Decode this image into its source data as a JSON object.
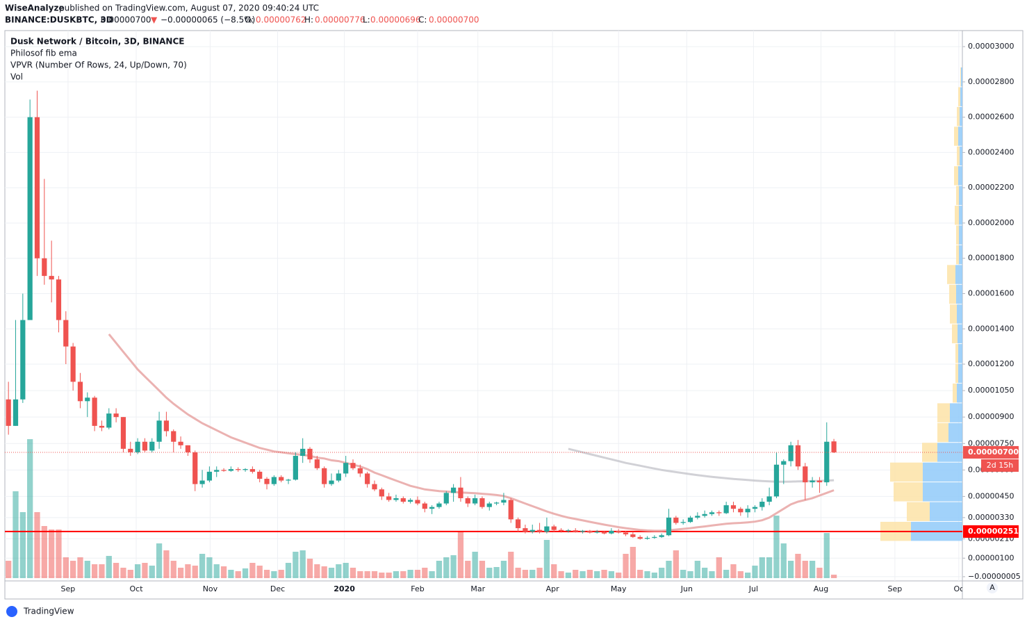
{
  "header": {
    "publisher": "WiseAnalyze",
    "published": "published on TradingView.com, August 07, 2020 09:40:24 UTC",
    "symbol": "BINANCE:DUSKBTC, 3D",
    "last": "0.00000700",
    "arrow": "▼",
    "change": "−0.00000065 (−8.5%)",
    "o_label": "O:",
    "o": "0.00000762",
    "h_label": "H:",
    "h": "0.00000776",
    "l_label": "L:",
    "l": "0.00000696",
    "c_label": "C:",
    "c": "0.00000700"
  },
  "footer": {
    "brand": "TradingView",
    "scale_button": "A"
  },
  "chart_data": {
    "type": "candlestick",
    "legend": [
      "Dusk Network / Bitcoin, 3D, BINANCE",
      "Philosof fib ema",
      "VPVR (Number Of Rows, 24, Up/Down, 70)",
      "Vol"
    ],
    "up_color": "#26a69a",
    "down_color": "#ef5350",
    "grid": true,
    "xlim": [
      -0.5,
      132.9
    ],
    "xticks": [
      {
        "value": 8.3,
        "label": "Sep"
      },
      {
        "value": 17.8,
        "label": "Oct"
      },
      {
        "value": 28.1,
        "label": "Nov"
      },
      {
        "value": 37.5,
        "label": "Dec"
      },
      {
        "value": 46.8,
        "label": "2020"
      },
      {
        "value": 57.0,
        "label": "Feb"
      },
      {
        "value": 65.4,
        "label": "Mar"
      },
      {
        "value": 75.8,
        "label": "Apr"
      },
      {
        "value": 85.0,
        "label": "May"
      },
      {
        "value": 94.5,
        "label": "Jun"
      },
      {
        "value": 103.8,
        "label": "Jul"
      },
      {
        "value": 113.2,
        "label": "Aug"
      },
      {
        "value": 123.5,
        "label": "Sep"
      },
      {
        "value": 132.4,
        "label": "Oc"
      }
    ],
    "ylim": [
      -2.9e-07,
      3.091e-05
    ],
    "yticks": [
      {
        "value": 3e-05,
        "label": "0.00003000"
      },
      {
        "value": 2.8e-05,
        "label": "0.00002800"
      },
      {
        "value": 2.6e-05,
        "label": "0.00002600"
      },
      {
        "value": 2.4e-05,
        "label": "0.00002400"
      },
      {
        "value": 2.2e-05,
        "label": "0.00002200"
      },
      {
        "value": 2e-05,
        "label": "0.00002000"
      },
      {
        "value": 1.8e-05,
        "label": "0.00001800"
      },
      {
        "value": 1.6e-05,
        "label": "0.00001600"
      },
      {
        "value": 1.4e-05,
        "label": "0.00001400"
      },
      {
        "value": 1.2e-05,
        "label": "0.00001200"
      },
      {
        "value": 1.05e-05,
        "label": "0.00001050"
      },
      {
        "value": 9e-06,
        "label": "0.00000900"
      },
      {
        "value": 7.5e-06,
        "label": "0.00000750"
      },
      {
        "value": 6e-06,
        "label": "0.00000600"
      },
      {
        "value": 4.5e-06,
        "label": "0.00000450"
      },
      {
        "value": 3.3e-06,
        "label": "0.00000330"
      },
      {
        "value": 2.1e-06,
        "label": "0.00000210"
      },
      {
        "value": 1e-06,
        "label": "0.00000100"
      },
      {
        "value": -5e-08,
        "label": "−0.00000005"
      }
    ],
    "ohlc": [
      [
        1e-05,
        1.1e-05,
        8e-06,
        8.5e-06
      ],
      [
        8.5e-06,
        1.45e-05,
        8.5e-06,
        1e-05
      ],
      [
        1e-05,
        1.6e-05,
        9.8e-06,
        1.45e-05
      ],
      [
        1.45e-05,
        2.7e-05,
        1.45e-05,
        2.6e-05
      ],
      [
        2.6e-05,
        2.75e-05,
        1.7e-05,
        1.8e-05
      ],
      [
        1.8e-05,
        2.25e-05,
        1.65e-05,
        1.7e-05
      ],
      [
        1.7e-05,
        1.9e-05,
        1.55e-05,
        1.68e-05
      ],
      [
        1.68e-05,
        1.7e-05,
        1.38e-05,
        1.45e-05
      ],
      [
        1.45e-05,
        1.5e-05,
        1.2e-05,
        1.3e-05
      ],
      [
        1.3e-05,
        1.32e-05,
        1.05e-05,
        1.1e-05
      ],
      [
        1.1e-05,
        1.15e-05,
        9.5e-06,
        9.9e-06
      ],
      [
        9.9e-06,
        1.04e-05,
        9e-06,
        1.01e-05
      ],
      [
        1.01e-05,
        1.02e-05,
        8.2e-06,
        8.5e-06
      ],
      [
        8.5e-06,
        8.8e-06,
        8.2e-06,
        8.4e-06
      ],
      [
        8.4e-06,
        9.5e-06,
        8.3e-06,
        9.2e-06
      ],
      [
        9.2e-06,
        9.5e-06,
        8.7e-06,
        9e-06
      ],
      [
        9e-06,
        9e-06,
        7e-06,
        7.2e-06
      ],
      [
        7.2e-06,
        7.6e-06,
        6.8e-06,
        7e-06
      ],
      [
        7e-06,
        7.8e-06,
        6.9e-06,
        7.6e-06
      ],
      [
        7.6e-06,
        7.8e-06,
        7e-06,
        7.1e-06
      ],
      [
        7.1e-06,
        7.8e-06,
        7e-06,
        7.6e-06
      ],
      [
        7.6e-06,
        9.3e-06,
        7.2e-06,
        8.8e-06
      ],
      [
        8.8e-06,
        9.3e-06,
        7.9e-06,
        8.2e-06
      ],
      [
        8.2e-06,
        8.3e-06,
        7e-06,
        7.6e-06
      ],
      [
        7.6e-06,
        7.9e-06,
        7.2e-06,
        7.4e-06
      ],
      [
        7.4e-06,
        7.4e-06,
        6.8e-06,
        7e-06
      ],
      [
        7e-06,
        7.1e-06,
        4.8e-06,
        5.2e-06
      ],
      [
        5.2e-06,
        6e-06,
        5e-06,
        5.4e-06
      ],
      [
        5.4e-06,
        6.2e-06,
        5.3e-06,
        5.9e-06
      ],
      [
        5.9e-06,
        6.2e-06,
        5.6e-06,
        6e-06
      ],
      [
        6e-06,
        6.1e-06,
        5.9e-06,
        5.95e-06
      ],
      [
        5.95e-06,
        6.2e-06,
        5.9e-06,
        6.05e-06
      ],
      [
        6.05e-06,
        6.15e-06,
        5.9e-06,
        6e-06
      ],
      [
        6e-06,
        6.1e-06,
        5.9e-06,
        6.05e-06
      ],
      [
        6.05e-06,
        6.2e-06,
        5.8e-06,
        5.9e-06
      ],
      [
        5.9e-06,
        6e-06,
        5.3e-06,
        5.5e-06
      ],
      [
        5.5e-06,
        5.6e-06,
        4.9e-06,
        5.2e-06
      ],
      [
        5.2e-06,
        5.7e-06,
        5.1e-06,
        5.6e-06
      ],
      [
        5.6e-06,
        5.7e-06,
        5.3e-06,
        5.4e-06
      ],
      [
        5.4e-06,
        5.5e-06,
        5.2e-06,
        5.45e-06
      ],
      [
        5.45e-06,
        7e-06,
        5.4e-06,
        6.8e-06
      ],
      [
        6.8e-06,
        7.8e-06,
        6.4e-06,
        7.2e-06
      ],
      [
        7.2e-06,
        7.3e-06,
        6.4e-06,
        6.6e-06
      ],
      [
        6.6e-06,
        6.8e-06,
        6e-06,
        6.1e-06
      ],
      [
        6.1e-06,
        6.2e-06,
        5e-06,
        5.2e-06
      ],
      [
        5.2e-06,
        5.8e-06,
        5.1e-06,
        5.4e-06
      ],
      [
        5.4e-06,
        6e-06,
        5.3e-06,
        5.8e-06
      ],
      [
        5.8e-06,
        6.8e-06,
        5.6e-06,
        6.4e-06
      ],
      [
        6.4e-06,
        6.6e-06,
        6e-06,
        6.1e-06
      ],
      [
        6.1e-06,
        6.3e-06,
        5.6e-06,
        5.8e-06
      ],
      [
        5.8e-06,
        5.9e-06,
        5e-06,
        5.2e-06
      ],
      [
        5.2e-06,
        5.4e-06,
        4.8e-06,
        4.9e-06
      ],
      [
        4.9e-06,
        5e-06,
        4.3e-06,
        4.5e-06
      ],
      [
        4.5e-06,
        4.7e-06,
        4.2e-06,
        4.3e-06
      ],
      [
        4.3e-06,
        4.6e-06,
        4.2e-06,
        4.4e-06
      ],
      [
        4.4e-06,
        4.5e-06,
        4.1e-06,
        4.2e-06
      ],
      [
        4.2e-06,
        4.4e-06,
        4.1e-06,
        4.3e-06
      ],
      [
        4.3e-06,
        4.5e-06,
        4e-06,
        4.1e-06
      ],
      [
        4.1e-06,
        4.2e-06,
        3.6e-06,
        3.8e-06
      ],
      [
        3.8e-06,
        4e-06,
        3.5e-06,
        3.9e-06
      ],
      [
        3.9e-06,
        4.2e-06,
        3.8e-06,
        4.1e-06
      ],
      [
        4.1e-06,
        4.8e-06,
        4e-06,
        4.7e-06
      ],
      [
        4.7e-06,
        5.2e-06,
        4.2e-06,
        5e-06
      ],
      [
        5e-06,
        5.6e-06,
        4.2e-06,
        4.4e-06
      ],
      [
        4.4e-06,
        4.5e-06,
        3.9e-06,
        4.1e-06
      ],
      [
        4.1e-06,
        4.6e-06,
        4e-06,
        4.4e-06
      ],
      [
        4.4e-06,
        4.5e-06,
        3.8e-06,
        3.9e-06
      ],
      [
        3.9e-06,
        4.2e-06,
        3.7e-06,
        4.1e-06
      ],
      [
        4.1e-06,
        4.2e-06,
        4e-06,
        4.15e-06
      ],
      [
        4.15e-06,
        4.7e-06,
        4e-06,
        4.3e-06
      ],
      [
        4.3e-06,
        4.4e-06,
        3e-06,
        3.2e-06
      ],
      [
        3.2e-06,
        3.3e-06,
        2.5e-06,
        2.7e-06
      ],
      [
        2.7e-06,
        2.9e-06,
        2.4e-06,
        2.5e-06
      ],
      [
        2.5e-06,
        2.9e-06,
        2.4e-06,
        2.6e-06
      ],
      [
        2.6e-06,
        3e-06,
        2.4e-06,
        2.5e-06
      ],
      [
        2.5e-06,
        3.3e-06,
        2.4e-06,
        2.8e-06
      ],
      [
        2.8e-06,
        2.9e-06,
        2.5e-06,
        2.6e-06
      ],
      [
        2.6e-06,
        2.7e-06,
        2.45e-06,
        2.55e-06
      ],
      [
        2.55e-06,
        2.65e-06,
        2.45e-06,
        2.58e-06
      ],
      [
        2.58e-06,
        2.7e-06,
        2.45e-06,
        2.5e-06
      ],
      [
        2.5e-06,
        2.6e-06,
        2.4e-06,
        2.55e-06
      ],
      [
        2.55e-06,
        2.6e-06,
        2.4e-06,
        2.45e-06
      ],
      [
        2.45e-06,
        2.6e-06,
        2.4e-06,
        2.5e-06
      ],
      [
        2.5e-06,
        2.55e-06,
        2.35e-06,
        2.4e-06
      ],
      [
        2.4e-06,
        2.7e-06,
        2.35e-06,
        2.55e-06
      ],
      [
        2.55e-06,
        2.65e-06,
        2.4e-06,
        2.45e-06
      ],
      [
        2.45e-06,
        2.55e-06,
        2.25e-06,
        2.35e-06
      ],
      [
        2.35e-06,
        2.5e-06,
        2.15e-06,
        2.2e-06
      ],
      [
        2.2e-06,
        2.3e-06,
        2.05e-06,
        2.1e-06
      ],
      [
        2.1e-06,
        2.25e-06,
        2.05e-06,
        2.15e-06
      ],
      [
        2.15e-06,
        2.3e-06,
        2.1e-06,
        2.2e-06
      ],
      [
        2.2e-06,
        2.4e-06,
        2.15e-06,
        2.3e-06
      ],
      [
        2.3e-06,
        3.8e-06,
        2.25e-06,
        3.3e-06
      ],
      [
        3.3e-06,
        3.4e-06,
        2.9e-06,
        3e-06
      ],
      [
        3e-06,
        3.2e-06,
        2.9e-06,
        3.05e-06
      ],
      [
        3.05e-06,
        3.4e-06,
        3e-06,
        3.3e-06
      ],
      [
        3.3e-06,
        3.6e-06,
        3.2e-06,
        3.4e-06
      ],
      [
        3.4e-06,
        3.7e-06,
        3.3e-06,
        3.5e-06
      ],
      [
        3.5e-06,
        3.7e-06,
        3.4e-06,
        3.6e-06
      ],
      [
        3.6e-06,
        3.7e-06,
        3.4e-06,
        3.55e-06
      ],
      [
        3.55e-06,
        4.2e-06,
        3.5e-06,
        4e-06
      ],
      [
        4e-06,
        4.2e-06,
        3.6e-06,
        3.8e-06
      ],
      [
        3.8e-06,
        3.9e-06,
        3.4e-06,
        3.6e-06
      ],
      [
        3.6e-06,
        4e-06,
        3.3e-06,
        3.8e-06
      ],
      [
        3.8e-06,
        4e-06,
        3.6e-06,
        3.9e-06
      ],
      [
        3.9e-06,
        4.4e-06,
        3.7e-06,
        4.2e-06
      ],
      [
        4.2e-06,
        5e-06,
        4e-06,
        4.5e-06
      ],
      [
        4.5e-06,
        7e-06,
        4.4e-06,
        6.3e-06
      ],
      [
        6.3e-06,
        6.6e-06,
        5.2e-06,
        6.5e-06
      ],
      [
        6.5e-06,
        7.6e-06,
        6.2e-06,
        7.4e-06
      ],
      [
        7.4e-06,
        7.7e-06,
        6e-06,
        6.2e-06
      ],
      [
        6.2e-06,
        6.4e-06,
        4.3e-06,
        5.3e-06
      ],
      [
        5.3e-06,
        5.6e-06,
        5e-06,
        5.4e-06
      ],
      [
        5.4e-06,
        5.6e-06,
        4.7e-06,
        5.3e-06
      ],
      [
        5.3e-06,
        8.7e-06,
        5.1e-06,
        7.6e-06
      ],
      [
        7.62e-06,
        7.76e-06,
        6.96e-06,
        7e-06
      ]
    ],
    "volume": [
      25,
      125,
      95,
      200,
      95,
      75,
      70,
      70,
      30,
      25,
      30,
      25,
      20,
      20,
      32,
      22,
      15,
      12,
      20,
      22,
      18,
      50,
      40,
      25,
      15,
      20,
      18,
      35,
      30,
      20,
      17,
      12,
      10,
      14,
      22,
      18,
      12,
      10,
      12,
      22,
      38,
      40,
      28,
      20,
      17,
      15,
      20,
      22,
      15,
      10,
      10,
      10,
      8,
      8,
      10,
      10,
      12,
      12,
      15,
      10,
      25,
      30,
      33,
      68,
      25,
      38,
      25,
      15,
      16,
      25,
      38,
      15,
      12,
      12,
      15,
      55,
      20,
      10,
      8,
      12,
      10,
      12,
      10,
      12,
      10,
      8,
      35,
      45,
      12,
      10,
      8,
      15,
      25,
      40,
      12,
      10,
      25,
      15,
      10,
      30,
      12,
      20,
      10,
      8,
      18,
      30,
      30,
      90,
      50,
      25,
      35,
      25,
      25,
      15,
      65,
      5
    ],
    "lines": [
      {
        "name": "Philosof fib ema",
        "color": "#e8a5a3",
        "values": [
          null,
          null,
          null,
          null,
          null,
          null,
          null,
          null,
          null,
          null,
          null,
          null,
          null,
          null,
          1.37e-05,
          1.32e-05,
          1.27e-05,
          1.22e-05,
          1.17e-05,
          1.13e-05,
          1.09e-05,
          1.05e-05,
          1.01e-05,
          9.75e-06,
          9.45e-06,
          9.15e-06,
          8.9e-06,
          8.65e-06,
          8.45e-06,
          8.25e-06,
          8.05e-06,
          7.85e-06,
          7.7e-06,
          7.55e-06,
          7.4e-06,
          7.25e-06,
          7.15e-06,
          7.05e-06,
          7e-06,
          6.95e-06,
          6.9e-06,
          6.85e-06,
          6.8e-06,
          6.7e-06,
          6.65e-06,
          6.55e-06,
          6.5e-06,
          6.4e-06,
          6.3e-06,
          6.2e-06,
          6.05e-06,
          5.85e-06,
          5.7e-06,
          5.55e-06,
          5.4e-06,
          5.25e-06,
          5.1e-06,
          5e-06,
          4.9e-06,
          4.85e-06,
          4.8e-06,
          4.78e-06,
          4.75e-06,
          4.72e-06,
          4.7e-06,
          4.68e-06,
          4.65e-06,
          4.62e-06,
          4.58e-06,
          4.52e-06,
          4.4e-06,
          4.25e-06,
          4.1e-06,
          3.95e-06,
          3.8e-06,
          3.65e-06,
          3.52e-06,
          3.4e-06,
          3.3e-06,
          3.22e-06,
          3.14e-06,
          3.06e-06,
          2.98e-06,
          2.9e-06,
          2.83e-06,
          2.76e-06,
          2.7e-06,
          2.65e-06,
          2.6e-06,
          2.57e-06,
          2.55e-06,
          2.55e-06,
          2.58e-06,
          2.62e-06,
          2.66e-06,
          2.7e-06,
          2.75e-06,
          2.8e-06,
          2.85e-06,
          2.9e-06,
          2.95e-06,
          2.98e-06,
          3e-06,
          3.03e-06,
          3.07e-06,
          3.15e-06,
          3.3e-06,
          3.55e-06,
          3.8e-06,
          4.05e-06,
          4.2e-06,
          4.3e-06,
          4.4e-06,
          4.55e-06,
          4.7e-06,
          4.85e-06
        ]
      },
      {
        "color": "#c9c9cf",
        "values": [
          null,
          null,
          null,
          null,
          null,
          null,
          null,
          null,
          null,
          null,
          null,
          null,
          null,
          null,
          null,
          null,
          null,
          null,
          null,
          null,
          null,
          null,
          null,
          null,
          null,
          null,
          null,
          null,
          null,
          null,
          null,
          null,
          null,
          null,
          null,
          null,
          null,
          null,
          null,
          null,
          null,
          null,
          null,
          null,
          null,
          null,
          null,
          null,
          null,
          null,
          null,
          null,
          null,
          null,
          null,
          null,
          null,
          null,
          null,
          null,
          null,
          null,
          null,
          null,
          null,
          null,
          null,
          null,
          null,
          null,
          null,
          null,
          null,
          null,
          null,
          null,
          null,
          null,
          7.2e-06,
          7.1e-06,
          7e-06,
          6.9e-06,
          6.8e-06,
          6.7e-06,
          6.6e-06,
          6.5e-06,
          6.4e-06,
          6.32e-06,
          6.24e-06,
          6.16e-06,
          6.08e-06,
          6e-06,
          5.94e-06,
          5.88e-06,
          5.82e-06,
          5.76e-06,
          5.71e-06,
          5.66e-06,
          5.61e-06,
          5.57e-06,
          5.53e-06,
          5.49e-06,
          5.46e-06,
          5.43e-06,
          5.4e-06,
          5.37e-06,
          5.35e-06,
          5.33e-06,
          5.33e-06,
          5.34e-06,
          5.35e-06,
          5.36e-06,
          5.37e-06,
          5.38e-06,
          5.4e-06,
          5.42e-06
        ]
      }
    ],
    "volume_profile": {
      "bins": [
        1.96e-06,
        3.08e-06,
        4.2e-06,
        5.32e-06,
        6.44e-06,
        7.56e-06,
        8.68e-06,
        9.8e-06,
        1.092e-05,
        1.204e-05,
        1.316e-05,
        1.428e-05,
        1.54e-05,
        1.652e-05,
        1.764e-05,
        1.876e-05,
        1.988e-05,
        2.1e-05,
        2.212e-05,
        2.324e-05,
        2.436e-05,
        2.548e-05,
        2.66e-05,
        2.772e-05,
        2.884e-05
      ],
      "up": [
        74,
        47,
        57,
        57,
        36,
        20,
        18,
        8,
        6,
        6,
        7,
        8,
        9,
        10,
        5,
        5,
        5,
        5,
        6,
        4,
        6,
        4,
        3,
        2
      ],
      "down": [
        44,
        33,
        42,
        47,
        22,
        16,
        18,
        6,
        4,
        4,
        8,
        10,
        10,
        12,
        4,
        4,
        6,
        4,
        6,
        4,
        6,
        4,
        3,
        1
      ],
      "up_color": "#90caf9",
      "down_color": "#fde3a7"
    },
    "last_price": {
      "value": 7e-06,
      "label": "0.00000700"
    },
    "countdown": "2d 15h",
    "horizontal_line": {
      "value": 2.51e-06,
      "label": "0.00000251",
      "color": "#ff0000"
    }
  }
}
